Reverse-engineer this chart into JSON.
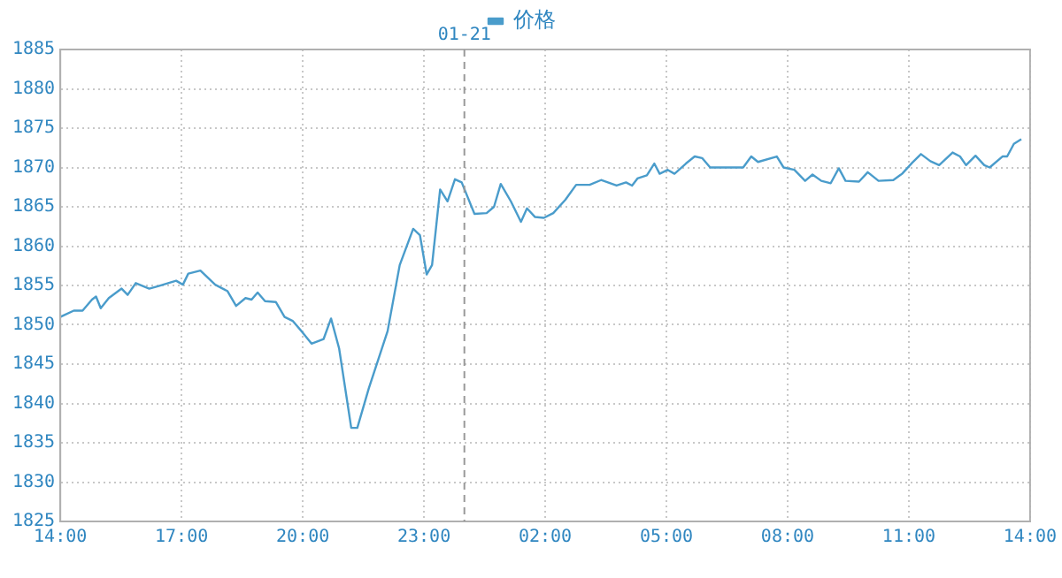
{
  "chart_data": {
    "type": "line",
    "legend": "top",
    "grid": true,
    "marker": "none",
    "line_style": "solid",
    "xlim": [
      "--01-20T14:00",
      "--01-21T14:00"
    ],
    "xticks": [
      {
        "value": "--01-20T14:00",
        "label": "14:00"
      },
      {
        "value": "--01-20T17:00",
        "label": "17:00"
      },
      {
        "value": "--01-20T20:00",
        "label": "20:00"
      },
      {
        "value": "--01-20T23:00",
        "label": "23:00"
      },
      {
        "value": "--01-21T02:00",
        "label": "02:00"
      },
      {
        "value": "--01-21T05:00",
        "label": "05:00"
      },
      {
        "value": "--01-21T08:00",
        "label": "08:00"
      },
      {
        "value": "--01-21T11:00",
        "label": "11:00"
      },
      {
        "value": "--01-21T14:00",
        "label": "14:00"
      }
    ],
    "ylim": [
      1825,
      1885
    ],
    "yticks": [
      1825,
      1830,
      1835,
      1840,
      1845,
      1850,
      1855,
      1860,
      1865,
      1870,
      1875,
      1880,
      1885
    ],
    "ref_lines": [
      {
        "axis": "x",
        "value": "--01-21",
        "label": "01-21",
        "color": "#999999",
        "line_style": "dashed"
      }
    ],
    "series": [
      {
        "name": "价格",
        "color": "#4a9ccb",
        "x": [
          "--01-20T14:00",
          "--01-20T14:20",
          "--01-20T14:33",
          "--01-20T14:47",
          "--01-20T14:53",
          "--01-20T15:00",
          "--01-20T15:12",
          "--01-20T15:31",
          "--01-20T15:40",
          "--01-20T15:52",
          "--01-20T16:12",
          "--01-20T16:25",
          "--01-20T16:52",
          "--01-20T17:02",
          "--01-20T17:10",
          "--01-20T17:28",
          "--01-20T17:50",
          "--01-20T18:08",
          "--01-20T18:21",
          "--01-20T18:35",
          "--01-20T18:44",
          "--01-20T18:53",
          "--01-20T19:04",
          "--01-20T19:20",
          "--01-20T19:33",
          "--01-20T19:45",
          "--01-20T20:00",
          "--01-20T20:13",
          "--01-20T20:31",
          "--01-20T20:42",
          "--01-20T20:54",
          "--01-20T21:12",
          "--01-20T21:21",
          "--01-20T21:38",
          "--01-20T22:06",
          "--01-20T22:24",
          "--01-20T22:44",
          "--01-20T22:54",
          "--01-20T23:04",
          "--01-20T23:12",
          "--01-20T23:24",
          "--01-20T23:35",
          "--01-20T23:46",
          "--01-20T23:56",
          "--01-21T00:15",
          "--01-21T00:33",
          "--01-21T00:44",
          "--01-21T00:54",
          "--01-21T01:09",
          "--01-21T01:24",
          "--01-21T01:33",
          "--01-21T01:45",
          "--01-21T01:58",
          "--01-21T02:12",
          "--01-21T02:30",
          "--01-21T02:46",
          "--01-21T03:06",
          "--01-21T03:23",
          "--01-21T03:46",
          "--01-21T04:00",
          "--01-21T04:09",
          "--01-21T04:17",
          "--01-21T04:31",
          "--01-21T04:42",
          "--01-21T04:50",
          "--01-21T05:02",
          "--01-21T05:12",
          "--01-21T05:29",
          "--01-21T05:42",
          "--01-21T05:53",
          "--01-21T06:05",
          "--01-21T06:54",
          "--01-21T07:06",
          "--01-21T07:16",
          "--01-21T07:44",
          "--01-21T07:54",
          "--01-21T08:10",
          "--01-21T08:26",
          "--01-21T08:37",
          "--01-21T08:50",
          "--01-21T09:04",
          "--01-21T09:16",
          "--01-21T09:26",
          "--01-21T09:46",
          "--01-21T09:59",
          "--01-21T10:15",
          "--01-21T10:37",
          "--01-21T10:50",
          "--01-21T11:05",
          "--01-21T11:18",
          "--01-21T11:32",
          "--01-21T11:45",
          "--01-21T12:05",
          "--01-21T12:16",
          "--01-21T12:25",
          "--01-21T12:39",
          "--01-21T12:52",
          "--01-21T13:00",
          "--01-21T13:19",
          "--01-21T13:26",
          "--01-21T13:36",
          "--01-21T13:47"
        ],
        "values": [
          1851.0,
          1851.8,
          1851.8,
          1853.2,
          1853.6,
          1852.1,
          1853.4,
          1854.6,
          1853.8,
          1855.3,
          1854.6,
          1854.9,
          1855.6,
          1855.1,
          1856.5,
          1856.9,
          1855.1,
          1854.3,
          1852.4,
          1853.4,
          1853.2,
          1854.1,
          1853.0,
          1852.9,
          1851.0,
          1850.5,
          1849.0,
          1847.6,
          1848.2,
          1850.8,
          1847.0,
          1836.9,
          1836.9,
          1841.9,
          1849.2,
          1857.6,
          1862.2,
          1861.4,
          1856.4,
          1857.6,
          1867.2,
          1865.7,
          1868.5,
          1868.1,
          1864.1,
          1864.2,
          1865.0,
          1867.9,
          1865.7,
          1863.1,
          1864.8,
          1863.7,
          1863.6,
          1864.2,
          1865.9,
          1867.8,
          1867.8,
          1868.4,
          1867.7,
          1868.1,
          1867.7,
          1868.6,
          1869.0,
          1870.5,
          1869.2,
          1869.7,
          1869.2,
          1870.5,
          1871.4,
          1871.2,
          1870.0,
          1870.0,
          1871.4,
          1870.7,
          1871.4,
          1870.0,
          1869.7,
          1868.3,
          1869.1,
          1868.3,
          1868.0,
          1869.9,
          1868.3,
          1868.2,
          1869.4,
          1868.3,
          1868.4,
          1869.2,
          1870.6,
          1871.7,
          1870.8,
          1870.3,
          1871.9,
          1871.4,
          1870.3,
          1871.5,
          1870.3,
          1870.0,
          1871.4,
          1871.4,
          1873.0,
          1873.6
        ]
      }
    ]
  }
}
